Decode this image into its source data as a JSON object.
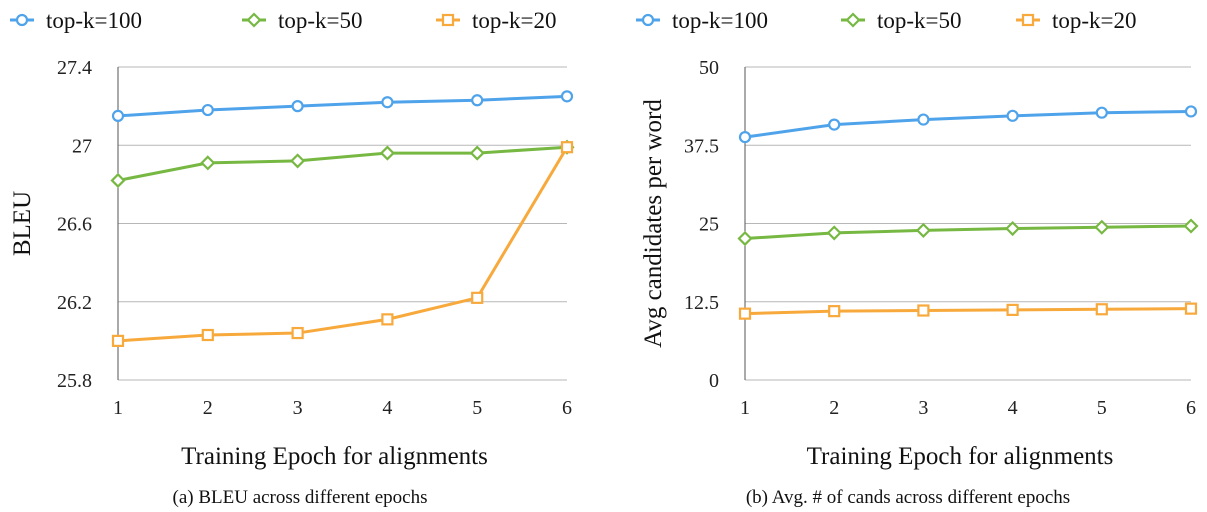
{
  "colors": {
    "top-k=100": "#4fa3ea",
    "top-k=50": "#77b843",
    "top-k=20": "#f8a93c"
  },
  "chart_data": [
    {
      "type": "line",
      "caption": "(a) BLEU across different epochs",
      "xlabel": "Training Epoch for alignments",
      "ylabel": "BLEU",
      "x": [
        1,
        2,
        3,
        4,
        5,
        6
      ],
      "x_tick_labels": [
        "1",
        "2",
        "3",
        "4",
        "5",
        "6"
      ],
      "ylim": [
        25.8,
        27.4
      ],
      "y_ticks": [
        25.8,
        26.2,
        26.6,
        27,
        27.4
      ],
      "y_tick_labels": [
        "25.8",
        "26.2",
        "26.6",
        "27",
        "27.4"
      ],
      "grid": true,
      "legend_position": "top",
      "series": [
        {
          "name": "top-k=100",
          "marker": "circle",
          "values": [
            27.15,
            27.18,
            27.2,
            27.22,
            27.23,
            27.25
          ]
        },
        {
          "name": "top-k=50",
          "marker": "diamond",
          "values": [
            26.82,
            26.91,
            26.92,
            26.96,
            26.96,
            26.99
          ]
        },
        {
          "name": "top-k=20",
          "marker": "square",
          "values": [
            26.0,
            26.03,
            26.04,
            26.11,
            26.22,
            26.99
          ]
        }
      ]
    },
    {
      "type": "line",
      "caption": "(b) Avg. # of cands across different epochs",
      "xlabel": "Training Epoch for alignments",
      "ylabel": "Avg candidates per word",
      "x": [
        1,
        2,
        3,
        4,
        5,
        6
      ],
      "x_tick_labels": [
        "1",
        "2",
        "3",
        "4",
        "5",
        "6"
      ],
      "ylim": [
        0,
        50
      ],
      "y_ticks": [
        0,
        12.5,
        25,
        37.5,
        50
      ],
      "y_tick_labels": [
        "0",
        "12.5",
        "25",
        "37.5",
        "50"
      ],
      "grid": true,
      "legend_position": "top",
      "series": [
        {
          "name": "top-k=100",
          "marker": "circle",
          "values": [
            38.8,
            40.8,
            41.6,
            42.2,
            42.7,
            42.9
          ]
        },
        {
          "name": "top-k=50",
          "marker": "diamond",
          "values": [
            22.6,
            23.5,
            23.9,
            24.2,
            24.4,
            24.6
          ]
        },
        {
          "name": "top-k=20",
          "marker": "square",
          "values": [
            10.6,
            11.0,
            11.1,
            11.2,
            11.3,
            11.4
          ]
        }
      ]
    }
  ]
}
